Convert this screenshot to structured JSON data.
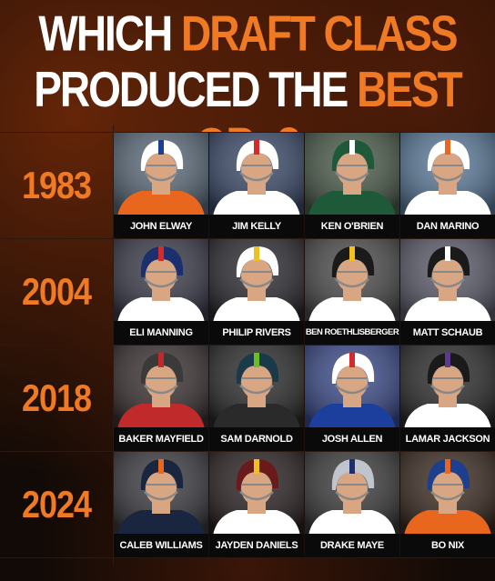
{
  "headline": {
    "line1_white": "WHICH ",
    "line1_orange": "DRAFT CLASS",
    "line2_white": "PRODUCED THE ",
    "line2_orange": "BEST QBs?"
  },
  "rows": [
    {
      "year": "1983",
      "players": [
        {
          "name": "JOHN ELWAY",
          "helmet": "#ffffff",
          "stripe": "#1d3f8f",
          "jersey": "#e8661e",
          "bg": "#5a6a7a"
        },
        {
          "name": "JIM KELLY",
          "helmet": "#ffffff",
          "stripe": "#d42a2a",
          "jersey": "#ffffff",
          "bg": "#3a4a6a"
        },
        {
          "name": "KEN O'BRIEN",
          "helmet": "#1e5a3a",
          "stripe": "#ffffff",
          "jersey": "#1e5a3a",
          "bg": "#4a5a4a"
        },
        {
          "name": "DAN MARINO",
          "helmet": "#ffffff",
          "stripe": "#e8661e",
          "jersey": "#ffffff",
          "bg": "#5a7a9a"
        }
      ]
    },
    {
      "year": "2004",
      "players": [
        {
          "name": "ELI MANNING",
          "helmet": "#1c2f6e",
          "stripe": "#d42a2a",
          "jersey": "#ffffff",
          "bg": "#3a3a4a"
        },
        {
          "name": "PHILIP RIVERS",
          "helmet": "#ffffff",
          "stripe": "#f0c020",
          "jersey": "#ffffff",
          "bg": "#2a2a30"
        },
        {
          "name": "BEN ROETHLISBERGER",
          "helmet": "#1a1a1a",
          "stripe": "#f0c020",
          "jersey": "#ffffff",
          "bg": "#4a4a4a"
        },
        {
          "name": "MATT SCHAUB",
          "helmet": "#1a1a1a",
          "stripe": "#ffffff",
          "jersey": "#ffffff",
          "bg": "#5a5a6a"
        }
      ]
    },
    {
      "year": "2018",
      "players": [
        {
          "name": "BAKER MAYFIELD",
          "helmet": "#3a3a3a",
          "stripe": "#c02a2a",
          "jersey": "#c02a2a",
          "bg": "#3a3030"
        },
        {
          "name": "SAM DARNOLD",
          "helmet": "#1a3a4a",
          "stripe": "#69be28",
          "jersey": "#2a2a2a",
          "bg": "#2a2a2a"
        },
        {
          "name": "JOSH ALLEN",
          "helmet": "#ffffff",
          "stripe": "#d42a2a",
          "jersey": "#1c3f9e",
          "bg": "#3a4a8a"
        },
        {
          "name": "LAMAR JACKSON",
          "helmet": "#1a1a1a",
          "stripe": "#5a3a8a",
          "jersey": "#ffffff",
          "bg": "#2a2a2a"
        }
      ]
    },
    {
      "year": "2024",
      "players": [
        {
          "name": "CALEB WILLIAMS",
          "helmet": "#1a2540",
          "stripe": "#e8661e",
          "jersey": "#1a2540",
          "bg": "#3a3a40"
        },
        {
          "name": "JAYDEN DANIELS",
          "helmet": "#6a1a1a",
          "stripe": "#f0c020",
          "jersey": "#ffffff",
          "bg": "#2a2020"
        },
        {
          "name": "DRAKE MAYE",
          "helmet": "#c0c4cc",
          "stripe": "#1c2f6e",
          "jersey": "#ffffff",
          "bg": "#3a3a3a"
        },
        {
          "name": "BO NIX",
          "helmet": "#1d3f8f",
          "stripe": "#e8661e",
          "jersey": "#e8661e",
          "bg": "#3a2a20"
        }
      ]
    }
  ],
  "colors": {
    "accent": "#f07a24",
    "text": "#ffffff",
    "background": "#120a06",
    "skin": "#d9a684"
  }
}
